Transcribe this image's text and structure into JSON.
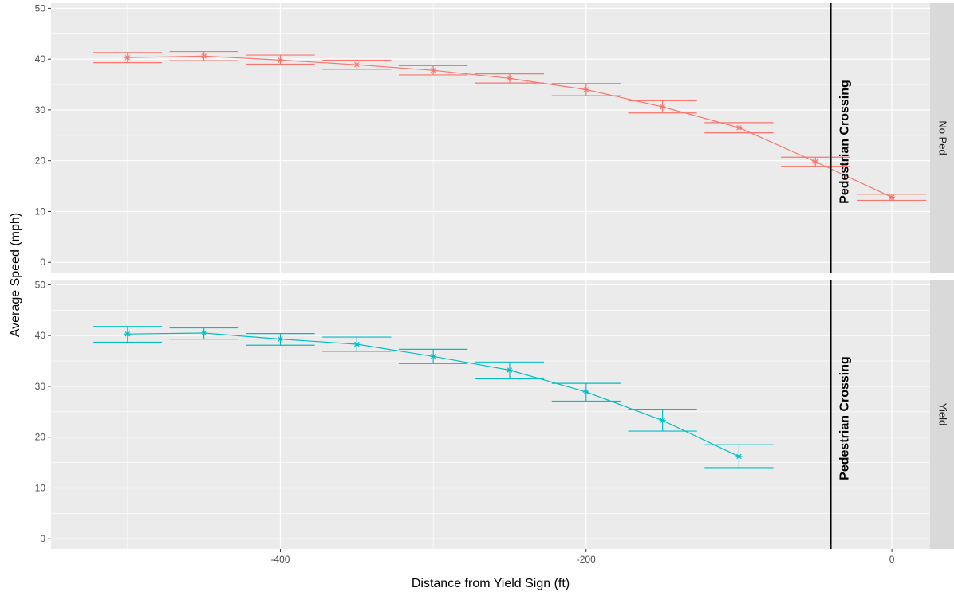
{
  "chart_data": {
    "type": "line",
    "xlabel": "Distance from Yield Sign (ft)",
    "ylabel": "Average Speed (mph)",
    "xlim": [
      -550,
      25
    ],
    "ylim": [
      -2,
      51
    ],
    "x_ticks": [
      -400,
      -200,
      0
    ],
    "x_tick_labels": [
      "-400",
      "-200",
      "0"
    ],
    "y_ticks": [
      0,
      10,
      20,
      30,
      40,
      50
    ],
    "y_tick_labels": [
      "0",
      "10",
      "20",
      "30",
      "40",
      "50"
    ],
    "grid": true,
    "legend": "none",
    "reference_line": {
      "x": -40,
      "label": "Pedestrian Crossing"
    },
    "panels": [
      {
        "strip_label": "No Ped",
        "color": "#F8766D",
        "x": [
          -500,
          -450,
          -400,
          -350,
          -300,
          -250,
          -200,
          -150,
          -100,
          -50,
          0
        ],
        "y": [
          40.3,
          40.6,
          39.8,
          38.9,
          37.8,
          36.2,
          34.0,
          30.6,
          26.5,
          19.8,
          12.8
        ],
        "err_lower": [
          39.3,
          39.7,
          39.0,
          38.0,
          36.9,
          35.3,
          32.8,
          29.4,
          25.5,
          18.9,
          12.2
        ],
        "err_upper": [
          41.3,
          41.5,
          40.8,
          39.8,
          38.7,
          37.1,
          35.2,
          31.8,
          27.5,
          20.7,
          13.4
        ]
      },
      {
        "strip_label": "Yield",
        "color": "#00BFC4",
        "x": [
          -500,
          -450,
          -400,
          -350,
          -300,
          -250,
          -200,
          -150,
          -100
        ],
        "y": [
          40.3,
          40.5,
          39.3,
          38.3,
          35.9,
          33.2,
          28.9,
          23.3,
          16.2
        ],
        "err_lower": [
          38.7,
          39.3,
          38.1,
          36.9,
          34.5,
          31.5,
          27.1,
          21.2,
          14.0
        ],
        "err_upper": [
          41.8,
          41.5,
          40.4,
          39.7,
          37.3,
          34.8,
          30.6,
          25.5,
          18.5
        ]
      }
    ]
  }
}
